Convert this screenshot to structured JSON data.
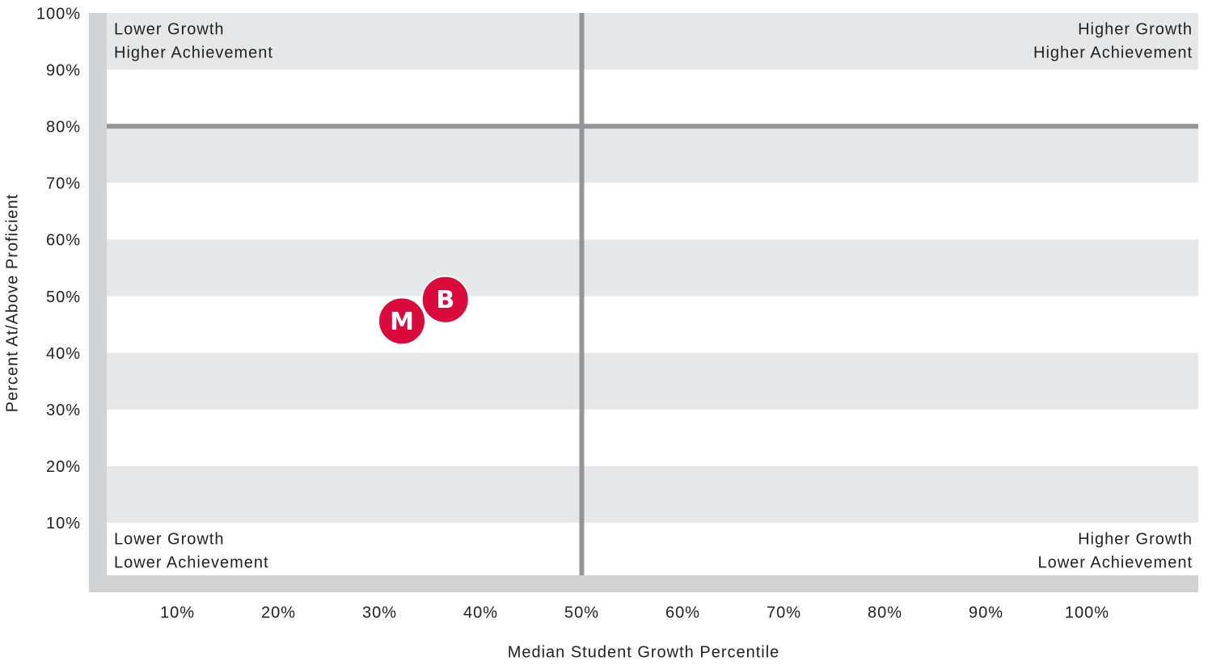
{
  "chart_data": {
    "type": "scatter",
    "x_label": "Median Student Growth Percentile",
    "y_label": "Percent At/Above Proficient",
    "xlim": [
      3,
      111
    ],
    "ylim": [
      0,
      100
    ],
    "xticks": [
      {
        "value": 10,
        "label": "10%"
      },
      {
        "value": 20,
        "label": "20%"
      },
      {
        "value": 30,
        "label": "30%"
      },
      {
        "value": 40,
        "label": "40%"
      },
      {
        "value": 50,
        "label": "50%"
      },
      {
        "value": 60,
        "label": "60%"
      },
      {
        "value": 70,
        "label": "70%"
      },
      {
        "value": 80,
        "label": "80%"
      },
      {
        "value": 90,
        "label": "90%"
      },
      {
        "value": 100,
        "label": "100%"
      }
    ],
    "yticks": [
      {
        "value": 10,
        "label": "10%"
      },
      {
        "value": 20,
        "label": "20%"
      },
      {
        "value": 30,
        "label": "30%"
      },
      {
        "value": 40,
        "label": "40%"
      },
      {
        "value": 50,
        "label": "50%"
      },
      {
        "value": 60,
        "label": "60%"
      },
      {
        "value": 70,
        "label": "70%"
      },
      {
        "value": 80,
        "label": "80%"
      },
      {
        "value": 90,
        "label": "90%"
      },
      {
        "value": 100,
        "label": "100%"
      }
    ],
    "thresholds": {
      "x": 50,
      "y": 80
    },
    "color": "#db0a3c",
    "points": [
      {
        "label": "M",
        "x": 32.2,
        "y": 45.6
      },
      {
        "label": "B",
        "x": 36.5,
        "y": 49.4
      }
    ],
    "quadrants": {
      "top_left": [
        "Lower Growth",
        "Higher Achievement"
      ],
      "top_right": [
        "Higher Growth",
        "Higher Achievement"
      ],
      "bottom_left": [
        "Lower Growth",
        "Lower Achievement"
      ],
      "bottom_right": [
        "Higher Growth",
        "Lower Achievement"
      ]
    }
  }
}
